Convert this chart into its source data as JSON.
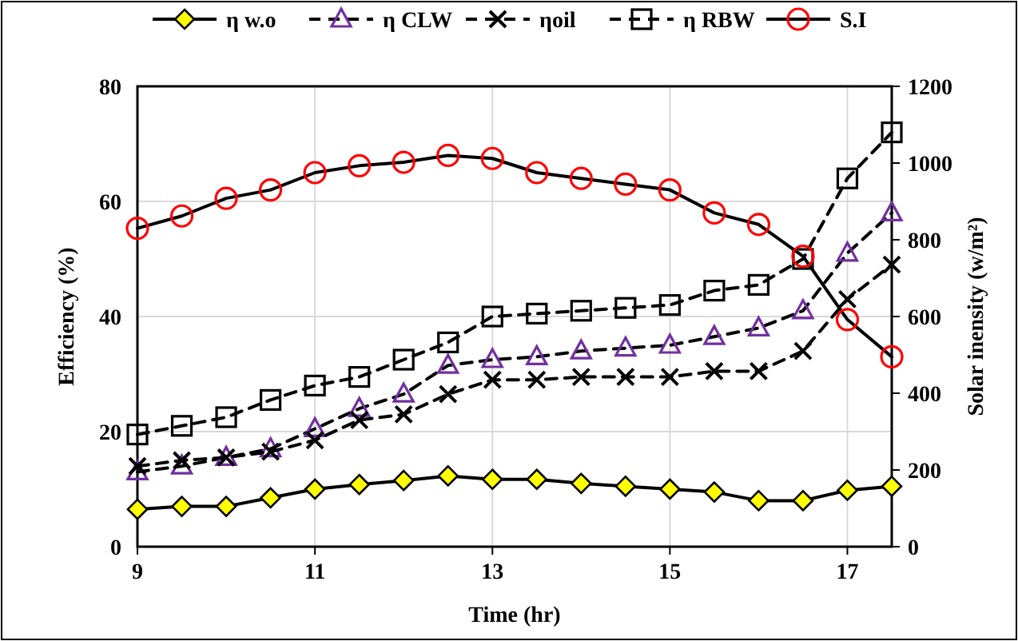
{
  "chart_data": {
    "type": "line",
    "xlabel": "Time (hr)",
    "ylabel": "Efficiency (%)",
    "y2label": "Solar inensity (w/m²)",
    "x": [
      9,
      9.5,
      10,
      10.5,
      11,
      11.5,
      12,
      12.5,
      13,
      13.5,
      14,
      14.5,
      15,
      15.5,
      16,
      16.5,
      17,
      17.5
    ],
    "xlim": [
      9,
      17.5
    ],
    "xticks": [
      9,
      11,
      13,
      15,
      17
    ],
    "ylim": [
      0,
      80
    ],
    "yticks": [
      0,
      20,
      40,
      60,
      80
    ],
    "y2lim": [
      0,
      1200
    ],
    "y2ticks": [
      0,
      200,
      400,
      600,
      800,
      1000,
      1200
    ],
    "grid": true,
    "legend": "top",
    "series": [
      {
        "name": "η w.o",
        "color": "#ffff00",
        "marker": "diamond",
        "line_style": "solid",
        "values": [
          6.5,
          7,
          7,
          8.5,
          10,
          10.8,
          11.5,
          12.3,
          11.7,
          11.7,
          11,
          10.5,
          10,
          9.5,
          8,
          8,
          9.8,
          10.5
        ]
      },
      {
        "name": "η CLW",
        "color": "#7030a0",
        "marker": "triangle",
        "line_style": "dashed",
        "values": [
          13,
          14,
          15.5,
          17,
          20.5,
          24,
          26.5,
          31.5,
          32.5,
          33,
          34,
          34.5,
          35,
          36.5,
          38,
          41,
          51,
          58
        ]
      },
      {
        "name": "ηoil",
        "color": "#000000",
        "marker": "cross",
        "line_style": "dashed",
        "values": [
          14,
          15,
          15.5,
          16.5,
          18.5,
          22,
          23,
          26.5,
          29,
          29,
          29.5,
          29.5,
          29.5,
          30.5,
          30.5,
          34,
          43,
          49
        ]
      },
      {
        "name": "η RBW",
        "color": "#000000",
        "marker": "square",
        "line_style": "dashed",
        "values": [
          19.5,
          21,
          22.5,
          25.5,
          28,
          29.5,
          32.5,
          35.5,
          40,
          40.5,
          41,
          41.5,
          42,
          44.5,
          45.5,
          50,
          64,
          72
        ]
      },
      {
        "name": "S.I",
        "color": "#ff0000",
        "marker": "circle",
        "line_style": "solid",
        "axis": "y2",
        "values": [
          830,
          862,
          908,
          930,
          975,
          993,
          1002,
          1020,
          1012,
          975,
          960,
          945,
          930,
          870,
          840,
          757,
          592,
          495
        ]
      }
    ]
  }
}
